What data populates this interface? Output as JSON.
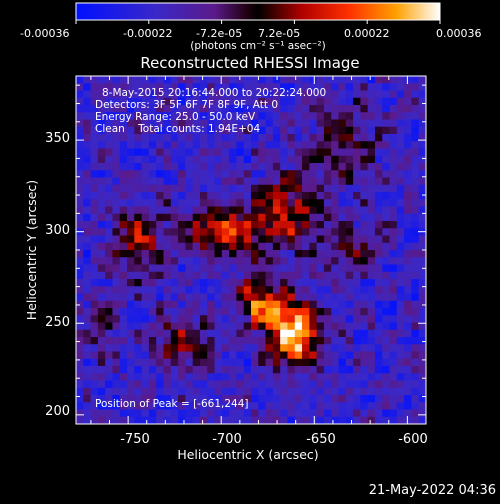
{
  "chart_data": {
    "type": "heatmap",
    "title": "Reconstructed RHESSI Image",
    "colorbar": {
      "colormap": "rainbow-to-heat",
      "min": -0.00036,
      "max": 0.00036,
      "tick_labels": [
        "-0.00036",
        "-0.00022",
        "-7.2e-05",
        "7.2e-05",
        "0.00022",
        "0.00036"
      ],
      "unit_label": "(photons cm⁻² s⁻¹ asec⁻²)"
    },
    "xlabel": "Heliocentric X (arcsec)",
    "ylabel": "Heliocentric Y (arcsec)",
    "xlim": [
      -778,
      -590
    ],
    "ylim": [
      195,
      385
    ],
    "xticks": [
      -750,
      -700,
      -650,
      -600
    ],
    "yticks": [
      200,
      250,
      300,
      350
    ],
    "annotations": [
      "8-May-2015 20:16:44.000 to 20:22:24.000",
      "Detectors: 3F 5F 6F 7F 8F 9F, Att 0",
      "Energy Range: 25.0 - 50.0 keV",
      "Clean    Total counts: 1.94E+04"
    ],
    "peak_label": "Position of Peak = [-661,244]",
    "peak": {
      "x": -661,
      "y": 244
    },
    "sources": [
      {
        "x": -661,
        "y": 244,
        "sx": 10,
        "sy": 12,
        "amp": 1.0
      },
      {
        "x": -680,
        "y": 262,
        "sx": 9,
        "sy": 9,
        "amp": 0.65
      },
      {
        "x": -700,
        "y": 300,
        "sx": 14,
        "sy": 10,
        "amp": 0.6
      },
      {
        "x": -665,
        "y": 310,
        "sx": 12,
        "sy": 14,
        "amp": 0.55
      },
      {
        "x": -745,
        "y": 295,
        "sx": 10,
        "sy": 14,
        "amp": 0.45
      },
      {
        "x": -720,
        "y": 240,
        "sx": 12,
        "sy": 10,
        "amp": 0.4
      },
      {
        "x": -635,
        "y": 350,
        "sx": 12,
        "sy": 16,
        "amp": 0.35
      },
      {
        "x": -630,
        "y": 290,
        "sx": 10,
        "sy": 10,
        "amp": 0.35
      },
      {
        "x": -765,
        "y": 250,
        "sx": 8,
        "sy": 10,
        "amp": 0.3
      }
    ]
  },
  "timestamp": "21-May-2022 04:36"
}
